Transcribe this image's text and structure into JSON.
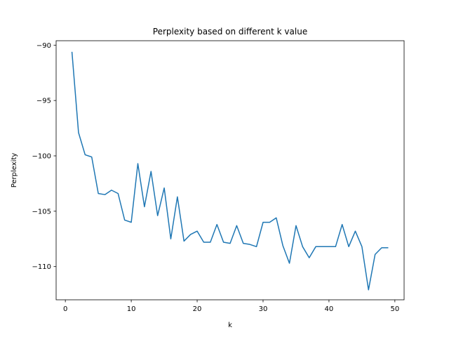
{
  "chart_data": {
    "type": "line",
    "title": "Perplexity based on different k value",
    "xlabel": "k",
    "ylabel": "Perplexity",
    "xlim": [
      -1.4,
      51.4
    ],
    "ylim": [
      -113.0,
      -89.6
    ],
    "xticks": [
      0,
      10,
      20,
      30,
      40,
      50
    ],
    "yticks": [
      -90,
      -95,
      -100,
      -105,
      -110
    ],
    "xtick_labels": [
      "0",
      "10",
      "20",
      "30",
      "40",
      "50"
    ],
    "ytick_labels": [
      "−90",
      "−95",
      "−100",
      "−105",
      "−110"
    ],
    "grid": false,
    "legend": "none",
    "series": [
      {
        "color": "#1f77b4",
        "x": [
          1,
          2,
          3,
          4,
          5,
          6,
          7,
          8,
          9,
          10,
          11,
          12,
          13,
          14,
          15,
          16,
          17,
          18,
          19,
          20,
          21,
          22,
          23,
          24,
          25,
          26,
          27,
          28,
          29,
          30,
          31,
          32,
          33,
          34,
          35,
          36,
          37,
          38,
          39,
          40,
          41,
          42,
          43,
          44,
          45,
          46,
          47,
          48,
          49
        ],
        "y": [
          -90.6,
          -97.9,
          -99.9,
          -100.1,
          -103.4,
          -103.5,
          -103.1,
          -103.4,
          -105.8,
          -106.0,
          -100.7,
          -104.6,
          -101.4,
          -105.4,
          -102.9,
          -107.5,
          -103.7,
          -107.7,
          -107.1,
          -106.8,
          -107.8,
          -107.8,
          -106.2,
          -107.8,
          -107.9,
          -106.3,
          -107.9,
          -108.0,
          -108.2,
          -106.0,
          -106.0,
          -105.6,
          -108.1,
          -109.7,
          -106.3,
          -108.2,
          -109.2,
          -108.2,
          -108.2,
          -108.2,
          -108.2,
          -106.2,
          -108.2,
          -106.8,
          -108.2,
          -112.1,
          -108.9,
          -108.3,
          -108.3
        ]
      }
    ]
  }
}
